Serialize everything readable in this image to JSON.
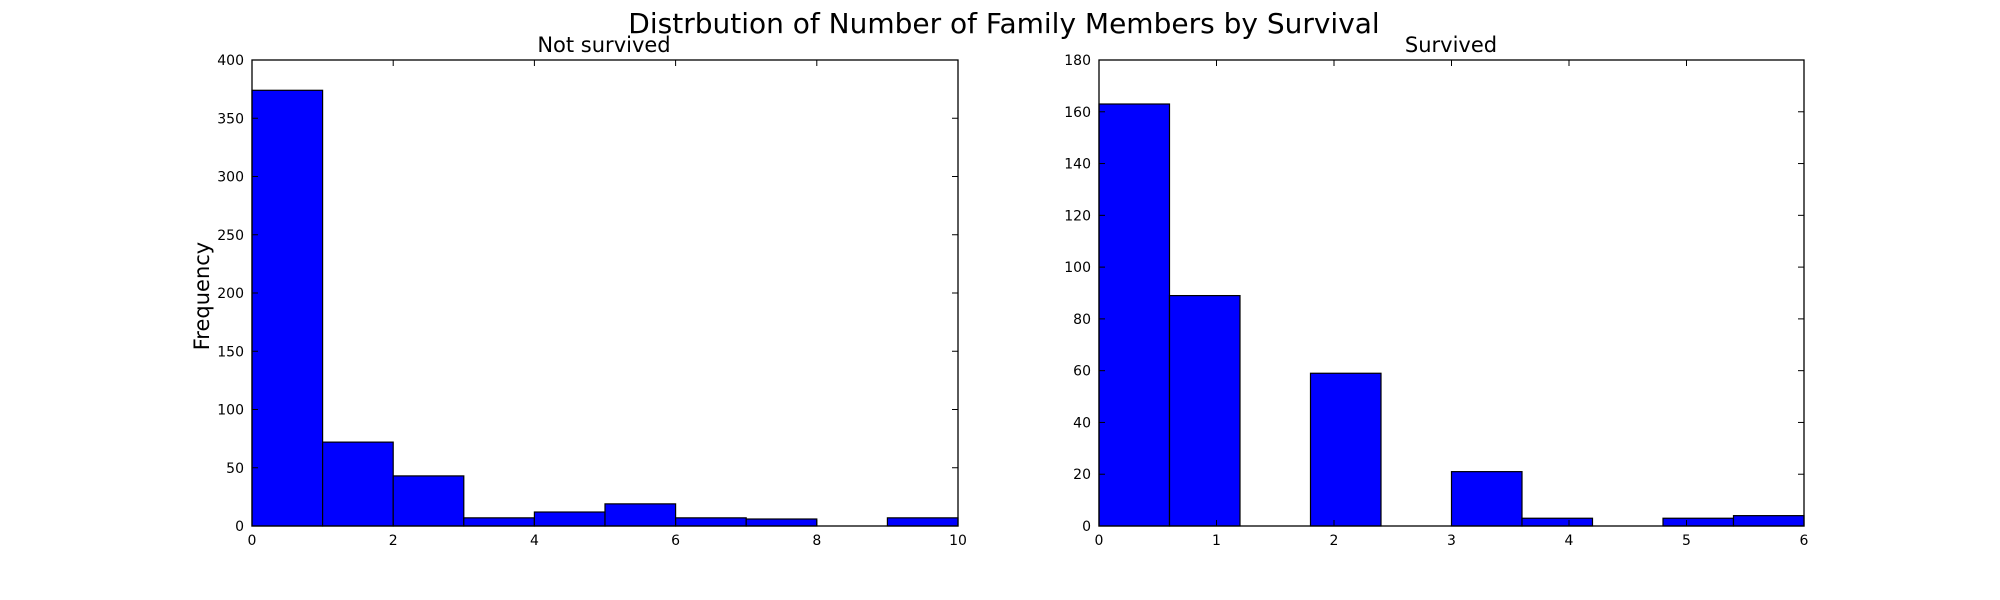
{
  "figure_title": "Distrbution of Number of Family Members by Survival",
  "chart_data": [
    {
      "type": "bar",
      "title": "Not survived",
      "xlabel": "",
      "ylabel": "Frequency",
      "xlim": [
        0,
        10
      ],
      "ylim": [
        0,
        400
      ],
      "xticks": [
        0,
        2,
        4,
        6,
        8,
        10
      ],
      "yticks": [
        0,
        50,
        100,
        150,
        200,
        250,
        300,
        350,
        400
      ],
      "bin_edges": [
        0,
        1,
        2,
        3,
        4,
        5,
        6,
        7,
        8,
        9,
        10
      ],
      "values": [
        374,
        72,
        43,
        7,
        12,
        19,
        7,
        6,
        0,
        7
      ],
      "color": "#0000ff",
      "grid": false
    },
    {
      "type": "bar",
      "title": "Survived",
      "xlabel": "",
      "ylabel": "",
      "xlim": [
        0,
        6
      ],
      "ylim": [
        0,
        180
      ],
      "xticks": [
        0,
        1,
        2,
        3,
        4,
        5,
        6
      ],
      "yticks": [
        0,
        20,
        40,
        60,
        80,
        100,
        120,
        140,
        160,
        180
      ],
      "bin_edges": [
        0,
        0.6,
        1.2,
        1.8,
        2.4,
        3.0,
        3.6,
        4.2,
        4.8,
        5.4,
        6.0
      ],
      "values": [
        163,
        89,
        0,
        59,
        0,
        21,
        3,
        0,
        3,
        4
      ],
      "color": "#0000ff",
      "grid": false
    }
  ]
}
